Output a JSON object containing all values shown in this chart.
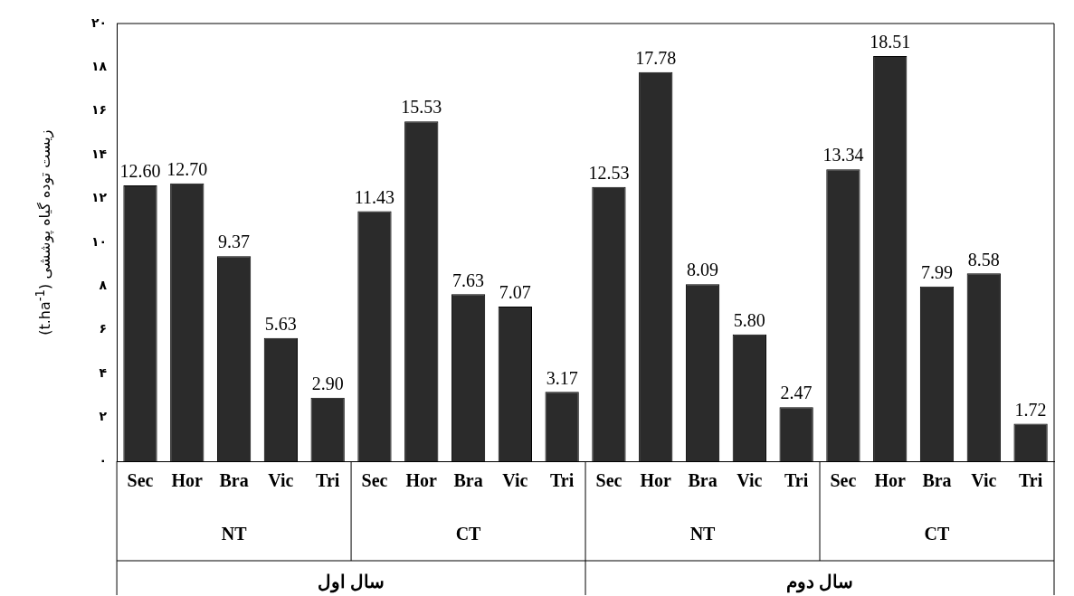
{
  "chart_data": {
    "type": "bar",
    "ylabel": "زیست توده گیاه پوششی (t.ha$^{-1}$)",
    "categories": [
      "Sec",
      "Hor",
      "Bra",
      "Vic",
      "Tri",
      "Sec",
      "Hor",
      "Bra",
      "Vic",
      "Tri",
      "Sec",
      "Hor",
      "Bra",
      "Vic",
      "Tri",
      "Sec",
      "Hor",
      "Bra",
      "Vic",
      "Tri"
    ],
    "values": [
      12.6,
      12.7,
      9.37,
      5.63,
      2.9,
      11.43,
      15.53,
      7.63,
      7.07,
      3.17,
      12.53,
      17.78,
      8.09,
      5.8,
      2.47,
      13.34,
      18.51,
      7.99,
      8.58,
      1.72
    ],
    "value_labels": [
      "12.60",
      "12.70",
      "9.37",
      "5.63",
      "2.90",
      "11.43",
      "15.53",
      "7.63",
      "7.07",
      "3.17",
      "12.53",
      "17.78",
      "8.09",
      "5.80",
      "2.47",
      "13.34",
      "18.51",
      "7.99",
      "8.58",
      "1.72"
    ],
    "color": "#2b2b2b",
    "ylim": [
      0,
      20
    ],
    "yticks": [
      {
        "value": 0,
        "label": "۰"
      },
      {
        "value": 2,
        "label": "۲"
      },
      {
        "value": 4,
        "label": "۴"
      },
      {
        "value": 6,
        "label": "۶"
      },
      {
        "value": 8,
        "label": "۸"
      },
      {
        "value": 10,
        "label": "۱۰"
      },
      {
        "value": 12,
        "label": "۱۲"
      },
      {
        "value": 14,
        "label": "۱۴"
      },
      {
        "value": 16,
        "label": "۱۶"
      },
      {
        "value": 18,
        "label": "۱۸"
      },
      {
        "value": 20,
        "label": "۲۰"
      }
    ],
    "grid": false,
    "annotations": [
      "NT",
      "CT",
      "NT",
      "CT",
      "سال اول",
      "سال دوم"
    ]
  }
}
